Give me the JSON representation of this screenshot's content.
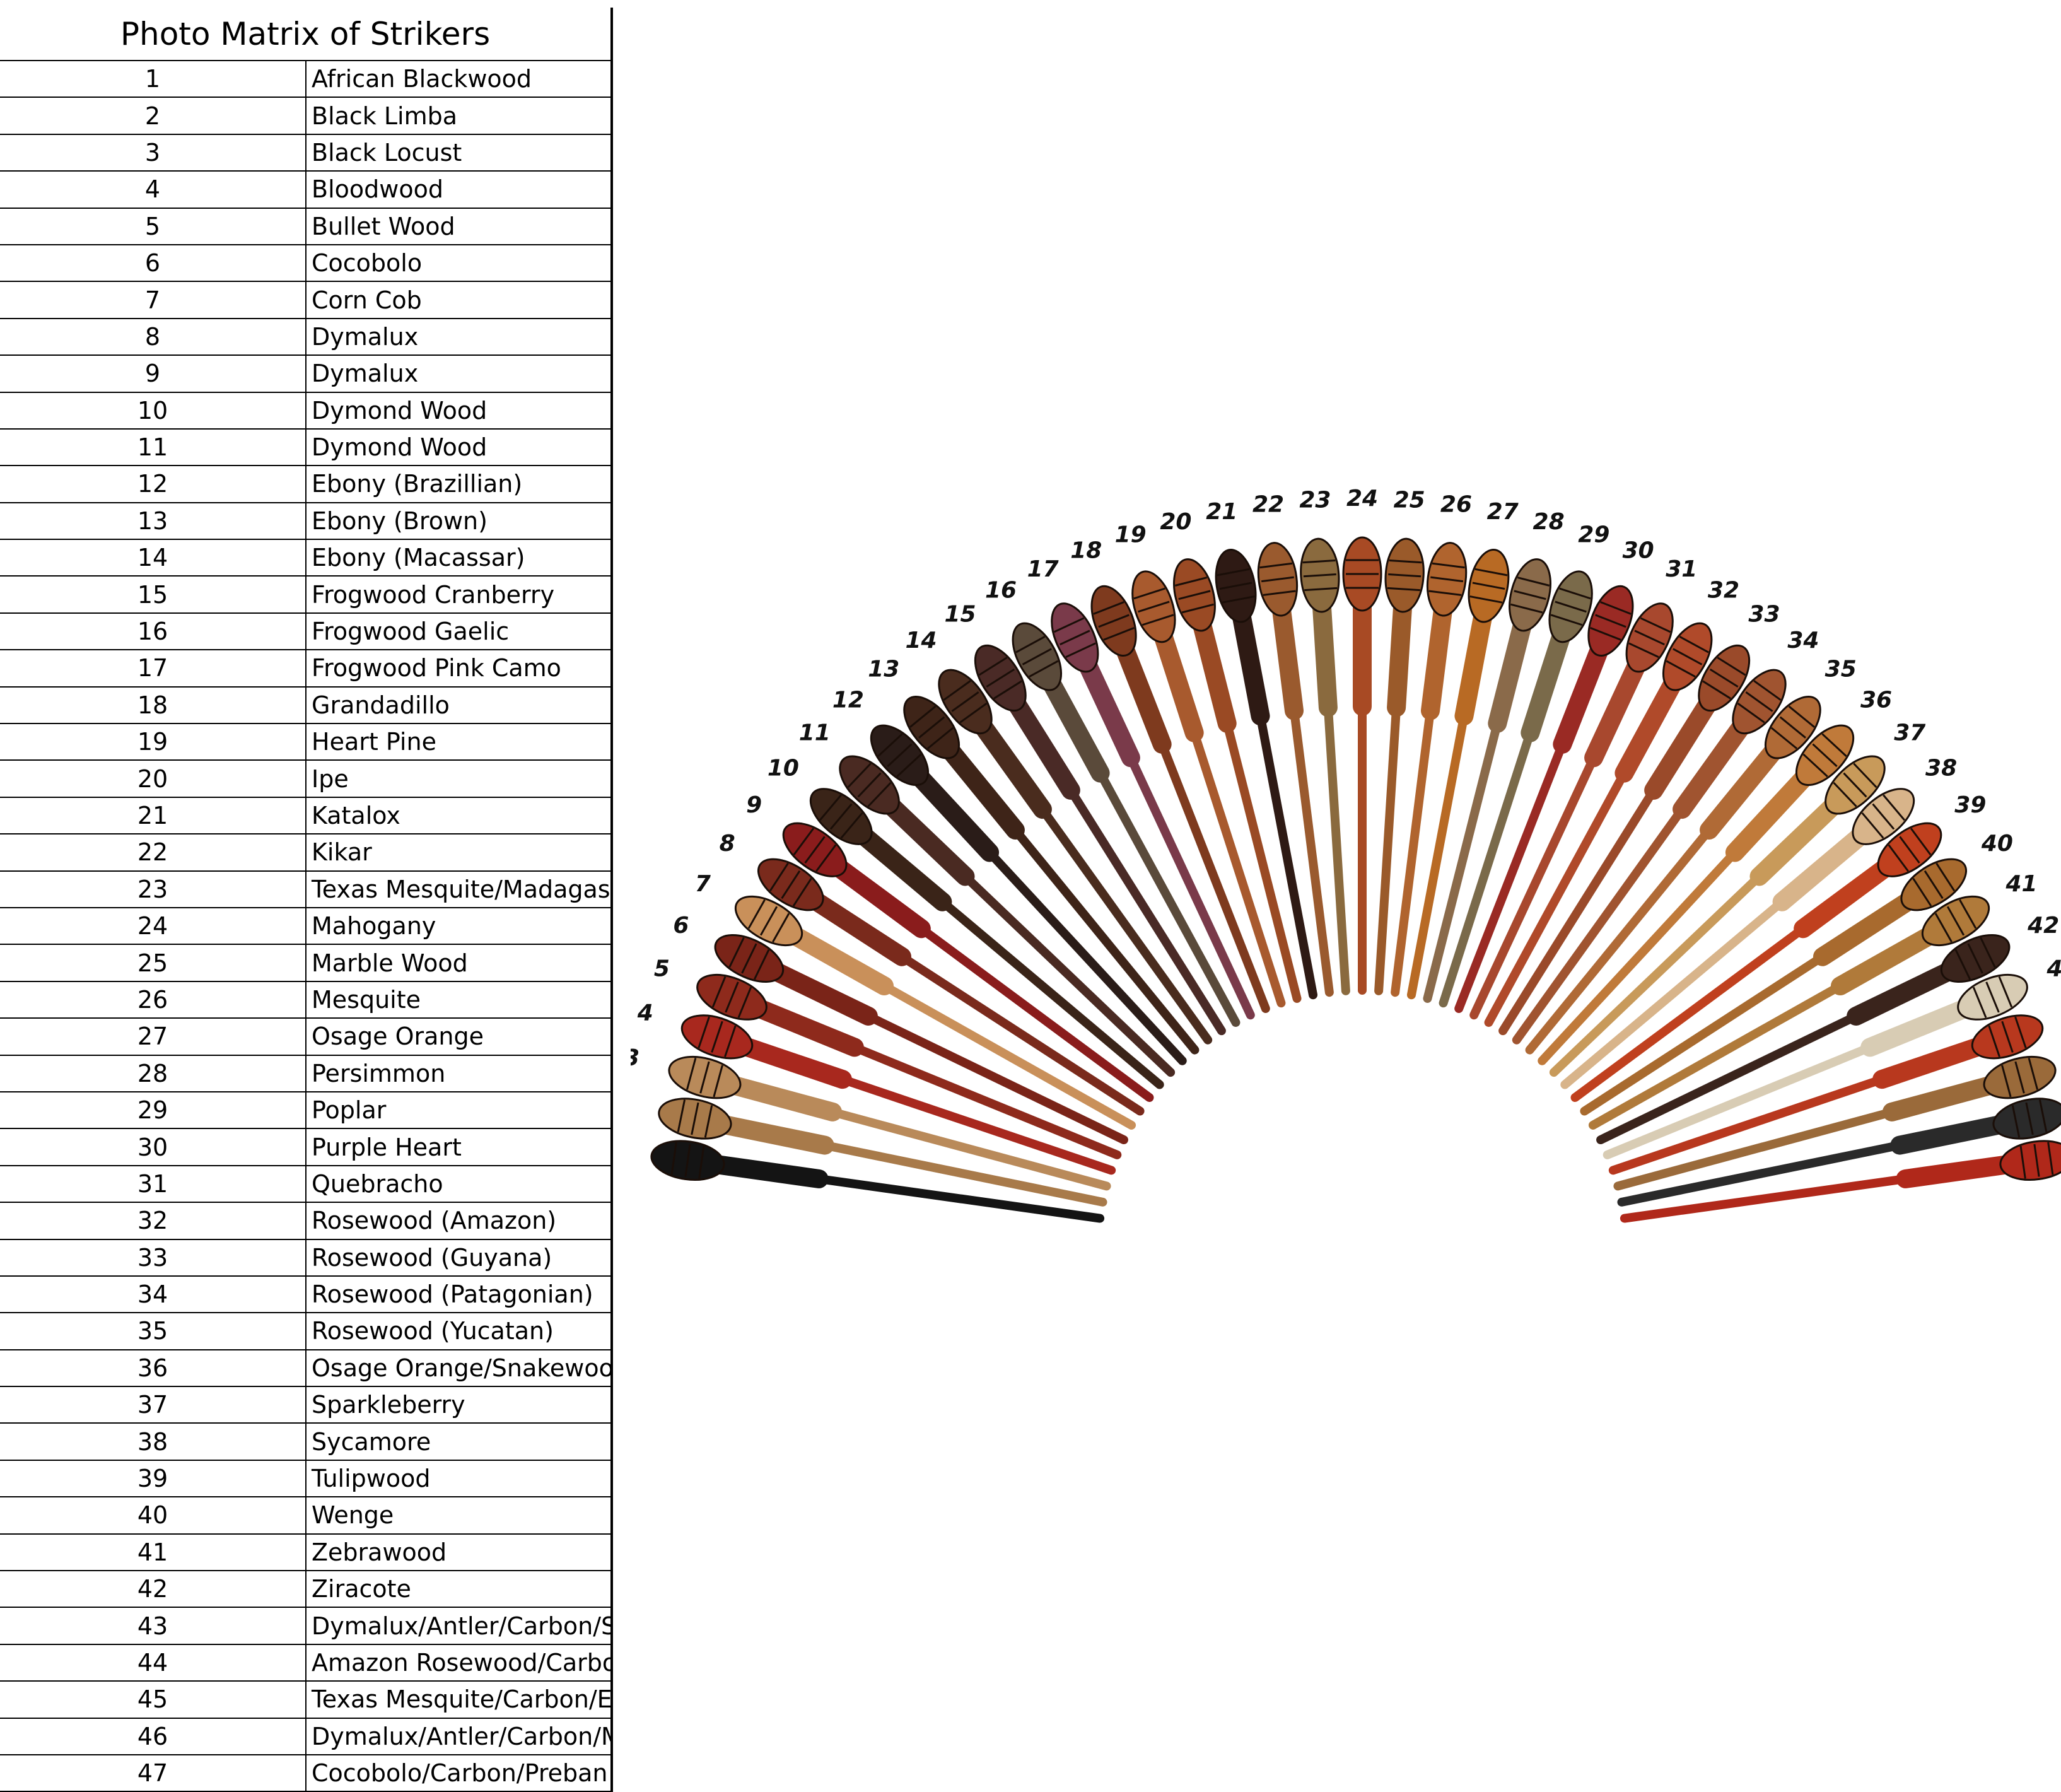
{
  "title": "Photo Matrix of Strikers",
  "rows": [
    {
      "num": "1",
      "name": "African Blackwood"
    },
    {
      "num": "2",
      "name": "Black Limba"
    },
    {
      "num": "3",
      "name": "Black Locust"
    },
    {
      "num": "4",
      "name": "Bloodwood"
    },
    {
      "num": "5",
      "name": "Bullet Wood"
    },
    {
      "num": "6",
      "name": "Cocobolo"
    },
    {
      "num": "7",
      "name": "Corn Cob"
    },
    {
      "num": "8",
      "name": "Dymalux"
    },
    {
      "num": "9",
      "name": "Dymalux"
    },
    {
      "num": "10",
      "name": "Dymond Wood"
    },
    {
      "num": "11",
      "name": "Dymond Wood"
    },
    {
      "num": "12",
      "name": "Ebony (Brazillian)"
    },
    {
      "num": "13",
      "name": "Ebony (Brown)"
    },
    {
      "num": "14",
      "name": "Ebony (Macassar)"
    },
    {
      "num": "15",
      "name": "Frogwood Cranberry"
    },
    {
      "num": "16",
      "name": "Frogwood  Gaelic"
    },
    {
      "num": "17",
      "name": "Frogwood Pink Camo"
    },
    {
      "num": "18",
      "name": "Grandadillo"
    },
    {
      "num": "19",
      "name": "Heart Pine"
    },
    {
      "num": "20",
      "name": "Ipe"
    },
    {
      "num": "21",
      "name": "Katalox"
    },
    {
      "num": "22",
      "name": "Kikar"
    },
    {
      "num": "23",
      "name": "Texas Mesquite/Madagascar Rosewood"
    },
    {
      "num": "24",
      "name": "Mahogany"
    },
    {
      "num": "25",
      "name": "Marble Wood"
    },
    {
      "num": "26",
      "name": "Mesquite"
    },
    {
      "num": "27",
      "name": "Osage Orange"
    },
    {
      "num": "28",
      "name": "Persimmon"
    },
    {
      "num": "29",
      "name": "Poplar"
    },
    {
      "num": "30",
      "name": "Purple Heart"
    },
    {
      "num": "31",
      "name": "Quebracho"
    },
    {
      "num": "32",
      "name": "Rosewood (Amazon)"
    },
    {
      "num": "33",
      "name": "Rosewood (Guyana)"
    },
    {
      "num": "34",
      "name": "Rosewood (Patagonian)"
    },
    {
      "num": "35",
      "name": "Rosewood (Yucatan)"
    },
    {
      "num": "36",
      "name": "Osage Orange/Snakewood"
    },
    {
      "num": "37",
      "name": "Sparkleberry"
    },
    {
      "num": "38",
      "name": "Sycamore"
    },
    {
      "num": "39",
      "name": "Tulipwood"
    },
    {
      "num": "40",
      "name": "Wenge"
    },
    {
      "num": "41",
      "name": "Zebrawood"
    },
    {
      "num": "42",
      "name": "Ziracote"
    },
    {
      "num": "43",
      "name": "Dymalux/Antler/Carbon/Sea Cow"
    },
    {
      "num": "44",
      "name": "Amazon Rosewood/Carbon/Giraffe Bone"
    },
    {
      "num": "45",
      "name": "Texas Mesquite/Carbon/Elkbone"
    },
    {
      "num": "46",
      "name": "Dymalux/Antler/Carbon/Mammoth Ivory"
    },
    {
      "num": "47",
      "name": "Cocobolo/Carbon/Preban Elephant Ivory"
    }
  ],
  "striker_colors": [
    "#141414",
    "#a87a4a",
    "#b98a5a",
    "#a8281e",
    "#8e2a1c",
    "#7a2418",
    "#c9905a",
    "#7a2a1c",
    "#8a1c1c",
    "#3a2418",
    "#4a2a22",
    "#2a1c18",
    "#3e2418",
    "#4a2c1e",
    "#4a2a26",
    "#5a4a3a",
    "#7a3a4a",
    "#7e3a1e",
    "#a85a2e",
    "#9a4a24",
    "#2e1a14",
    "#9a5a2e",
    "#8a6a3e",
    "#a84a24",
    "#9a5a2a",
    "#b0642e",
    "#b86a24",
    "#8a6a4a",
    "#7a6a4a",
    "#9a2a24",
    "#a8482e",
    "#b04a2a",
    "#9a4a2a",
    "#a05430",
    "#b06a36",
    "#c07a3a",
    "#c89a5a",
    "#d8b48a",
    "#c0401e",
    "#a86a2e",
    "#b07a3a",
    "#3a241c",
    "#d8ccb4",
    "#b8381e",
    "#9a6a3a",
    "#2a2a2a",
    "#b0281a"
  ]
}
